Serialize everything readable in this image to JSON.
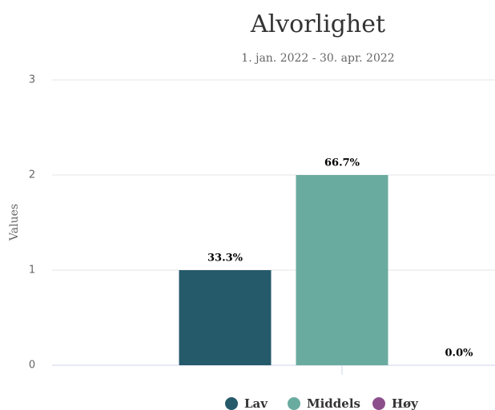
{
  "chart_data": {
    "type": "bar",
    "title": "Alvorlighet",
    "subtitle": "1. jan. 2022 - 30. apr. 2022",
    "y_label": "Values",
    "categories": [
      null
    ],
    "series": [
      {
        "name": "Lav",
        "color": "#255a6b",
        "values": [
          1
        ],
        "value_labels": [
          "33.3%"
        ]
      },
      {
        "name": "Middels",
        "color": "#6aab9f",
        "values": [
          2
        ],
        "value_labels": [
          "66.7%"
        ]
      },
      {
        "name": "Høy",
        "color": "#8d4f8c",
        "values": [
          0
        ],
        "value_labels": [
          "0.0%"
        ]
      }
    ],
    "ylim": [
      0,
      3
    ],
    "yticks": [
      0,
      1,
      2,
      3
    ],
    "grid": true,
    "legend": "bottom"
  }
}
